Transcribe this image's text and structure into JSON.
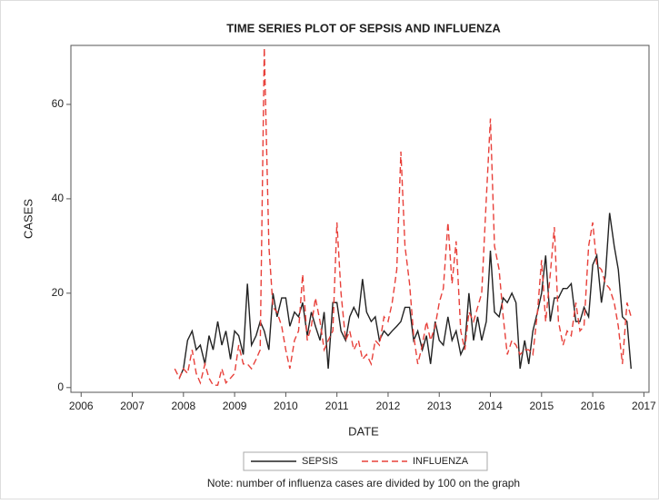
{
  "chart_data": {
    "type": "line",
    "title": "TIME SERIES PLOT OF SEPSIS AND INFLUENZA",
    "x_label": "DATE",
    "y_label": "CASES",
    "note": "Note: number of influenza cases are divided by 100 on the graph",
    "x": [
      2007.83,
      2007.92,
      2008.0,
      2008.08,
      2008.17,
      2008.25,
      2008.33,
      2008.42,
      2008.5,
      2008.58,
      2008.67,
      2008.75,
      2008.83,
      2008.92,
      2009.0,
      2009.08,
      2009.17,
      2009.25,
      2009.33,
      2009.42,
      2009.5,
      2009.58,
      2009.67,
      2009.75,
      2009.83,
      2009.92,
      2010.0,
      2010.08,
      2010.17,
      2010.25,
      2010.33,
      2010.42,
      2010.5,
      2010.58,
      2010.67,
      2010.75,
      2010.83,
      2010.92,
      2011.0,
      2011.08,
      2011.17,
      2011.25,
      2011.33,
      2011.42,
      2011.5,
      2011.58,
      2011.67,
      2011.75,
      2011.83,
      2011.92,
      2012.0,
      2012.08,
      2012.17,
      2012.25,
      2012.33,
      2012.42,
      2012.5,
      2012.58,
      2012.67,
      2012.75,
      2012.83,
      2012.92,
      2013.0,
      2013.08,
      2013.17,
      2013.25,
      2013.33,
      2013.42,
      2013.5,
      2013.58,
      2013.67,
      2013.75,
      2013.83,
      2013.92,
      2014.0,
      2014.08,
      2014.17,
      2014.25,
      2014.33,
      2014.42,
      2014.5,
      2014.58,
      2014.67,
      2014.75,
      2014.83,
      2014.92,
      2015.0,
      2015.08,
      2015.17,
      2015.25,
      2015.33,
      2015.42,
      2015.5,
      2015.58,
      2015.67,
      2015.75,
      2015.83,
      2015.92,
      2016.0,
      2016.08,
      2016.17,
      2016.25,
      2016.33,
      2016.42,
      2016.5,
      2016.58,
      2016.67,
      2016.75
    ],
    "series": [
      {
        "name": "SEPSIS",
        "color": "#222222",
        "dashed": false,
        "values": [
          null,
          2,
          4,
          10,
          12,
          8,
          9,
          5,
          11,
          8,
          14,
          9,
          12,
          6,
          12,
          11,
          7,
          22,
          9,
          11,
          14,
          12,
          8,
          20,
          15,
          19,
          19,
          13,
          16,
          15,
          18,
          11,
          16,
          13,
          10,
          16,
          4,
          18,
          18,
          12,
          10,
          15,
          17,
          15,
          23,
          16,
          14,
          15,
          10,
          12,
          11,
          12,
          13,
          14,
          17,
          17,
          10,
          12,
          8,
          11,
          5,
          14,
          10,
          9,
          15,
          10,
          12,
          7,
          9,
          20,
          10,
          15,
          10,
          14,
          29,
          16,
          15,
          19,
          18,
          20,
          18,
          4,
          10,
          5,
          12,
          16,
          20,
          28,
          14,
          19,
          19,
          21,
          21,
          22,
          14,
          14,
          17,
          15,
          26,
          28,
          18,
          24,
          37,
          30,
          25,
          15,
          14,
          4
        ]
      },
      {
        "name": "INFLUENZA",
        "color": "#e8403a",
        "dashed": true,
        "values": [
          4,
          2,
          4,
          3,
          8,
          3,
          1,
          5,
          2,
          0.5,
          0.5,
          4,
          1,
          2,
          3,
          9,
          5,
          5,
          4,
          6,
          8,
          72,
          30,
          17,
          16,
          13,
          8,
          4,
          10,
          12,
          24,
          10,
          13,
          19,
          14,
          8,
          10,
          12,
          35,
          20,
          10,
          12,
          8,
          10,
          6,
          7,
          5,
          10,
          9,
          15,
          14,
          18,
          25,
          50,
          30,
          22,
          11,
          5,
          9,
          14,
          10,
          13,
          18,
          21,
          35,
          22,
          31,
          12,
          8,
          16,
          14,
          17,
          20,
          40,
          57,
          30,
          25,
          15,
          7,
          10,
          9,
          7,
          8,
          8,
          7,
          16,
          27,
          14,
          24,
          34,
          14,
          9,
          12,
          11,
          18,
          12,
          13,
          30,
          35,
          26,
          25,
          22,
          21,
          18,
          13,
          5,
          18,
          15
        ]
      }
    ],
    "xlim": [
      2005.8,
      2017.1
    ],
    "xticks": [
      2006,
      2007,
      2008,
      2009,
      2010,
      2011,
      2012,
      2013,
      2014,
      2015,
      2016,
      2017
    ],
    "ylim": [
      -1,
      72.5
    ],
    "yticks": [
      0,
      20,
      40,
      60
    ],
    "grid": false,
    "legend": "bottom"
  }
}
